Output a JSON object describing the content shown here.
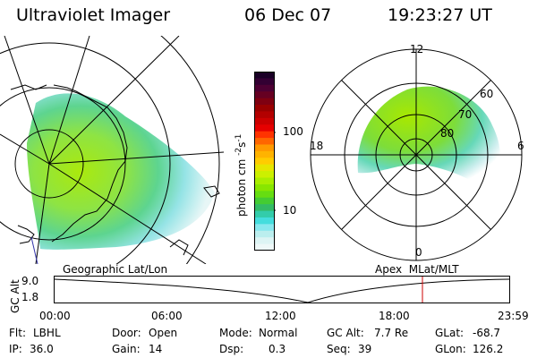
{
  "header": {
    "title": "Ultraviolet Imager",
    "date": "06 Dec 07",
    "time": "19:23:27 UT"
  },
  "colorbar": {
    "unit_label": "photon cm",
    "exp1": "-2",
    "mid": "s",
    "exp2": "-1",
    "ticks": [
      "100",
      "10"
    ],
    "colors_top_to_bottom": [
      "#1a0026",
      "#330033",
      "#4d0033",
      "#660022",
      "#7f0011",
      "#990000",
      "#b30000",
      "#cc0000",
      "#e60000",
      "#ff3300",
      "#ff6600",
      "#ff9900",
      "#ffb300",
      "#ffcc00",
      "#e6e600",
      "#ccf000",
      "#aaee00",
      "#88e600",
      "#66dd11",
      "#44cc33",
      "#33bb66",
      "#33ccaa",
      "#44dddd",
      "#88e8ee",
      "#bbeeee",
      "#ddf4f4",
      "#eef8f8"
    ]
  },
  "left_map": {
    "caption": "Geographic Lat/Lon"
  },
  "right_map": {
    "caption": "Apex  MLat/MLT",
    "mlt_labels": {
      "top": "12",
      "left": "18",
      "right": "6",
      "bottom": "0"
    },
    "lat_labels": [
      "60",
      "70",
      "80"
    ]
  },
  "altitude_plot": {
    "ylabel": "GC Alt",
    "y_ticks": [
      "9.0",
      "1.8"
    ],
    "x_ticks": [
      "00:00",
      "06:00",
      "12:00",
      "18:00",
      "23:59"
    ],
    "marker_time": "19:23",
    "marker_color": "#cc0000"
  },
  "status": {
    "flt_label": "Flt:",
    "flt_value": "LBHL",
    "ip_label": "IP:",
    "ip_value": "36.0",
    "door_label": "Door:",
    "door_value": "Open",
    "gain_label": "Gain:",
    "gain_value": "14",
    "mode_label": "Mode:",
    "mode_value": "Normal",
    "dsp_label": "Dsp:",
    "dsp_value": "0.3",
    "gcalt_label": "GC Alt:",
    "gcalt_value": "7.7 Re",
    "seq_label": "Seq:",
    "seq_value": "39",
    "glat_label": "GLat:",
    "glat_value": "-68.7",
    "glon_label": "GLon:",
    "glon_value": "126.2"
  }
}
